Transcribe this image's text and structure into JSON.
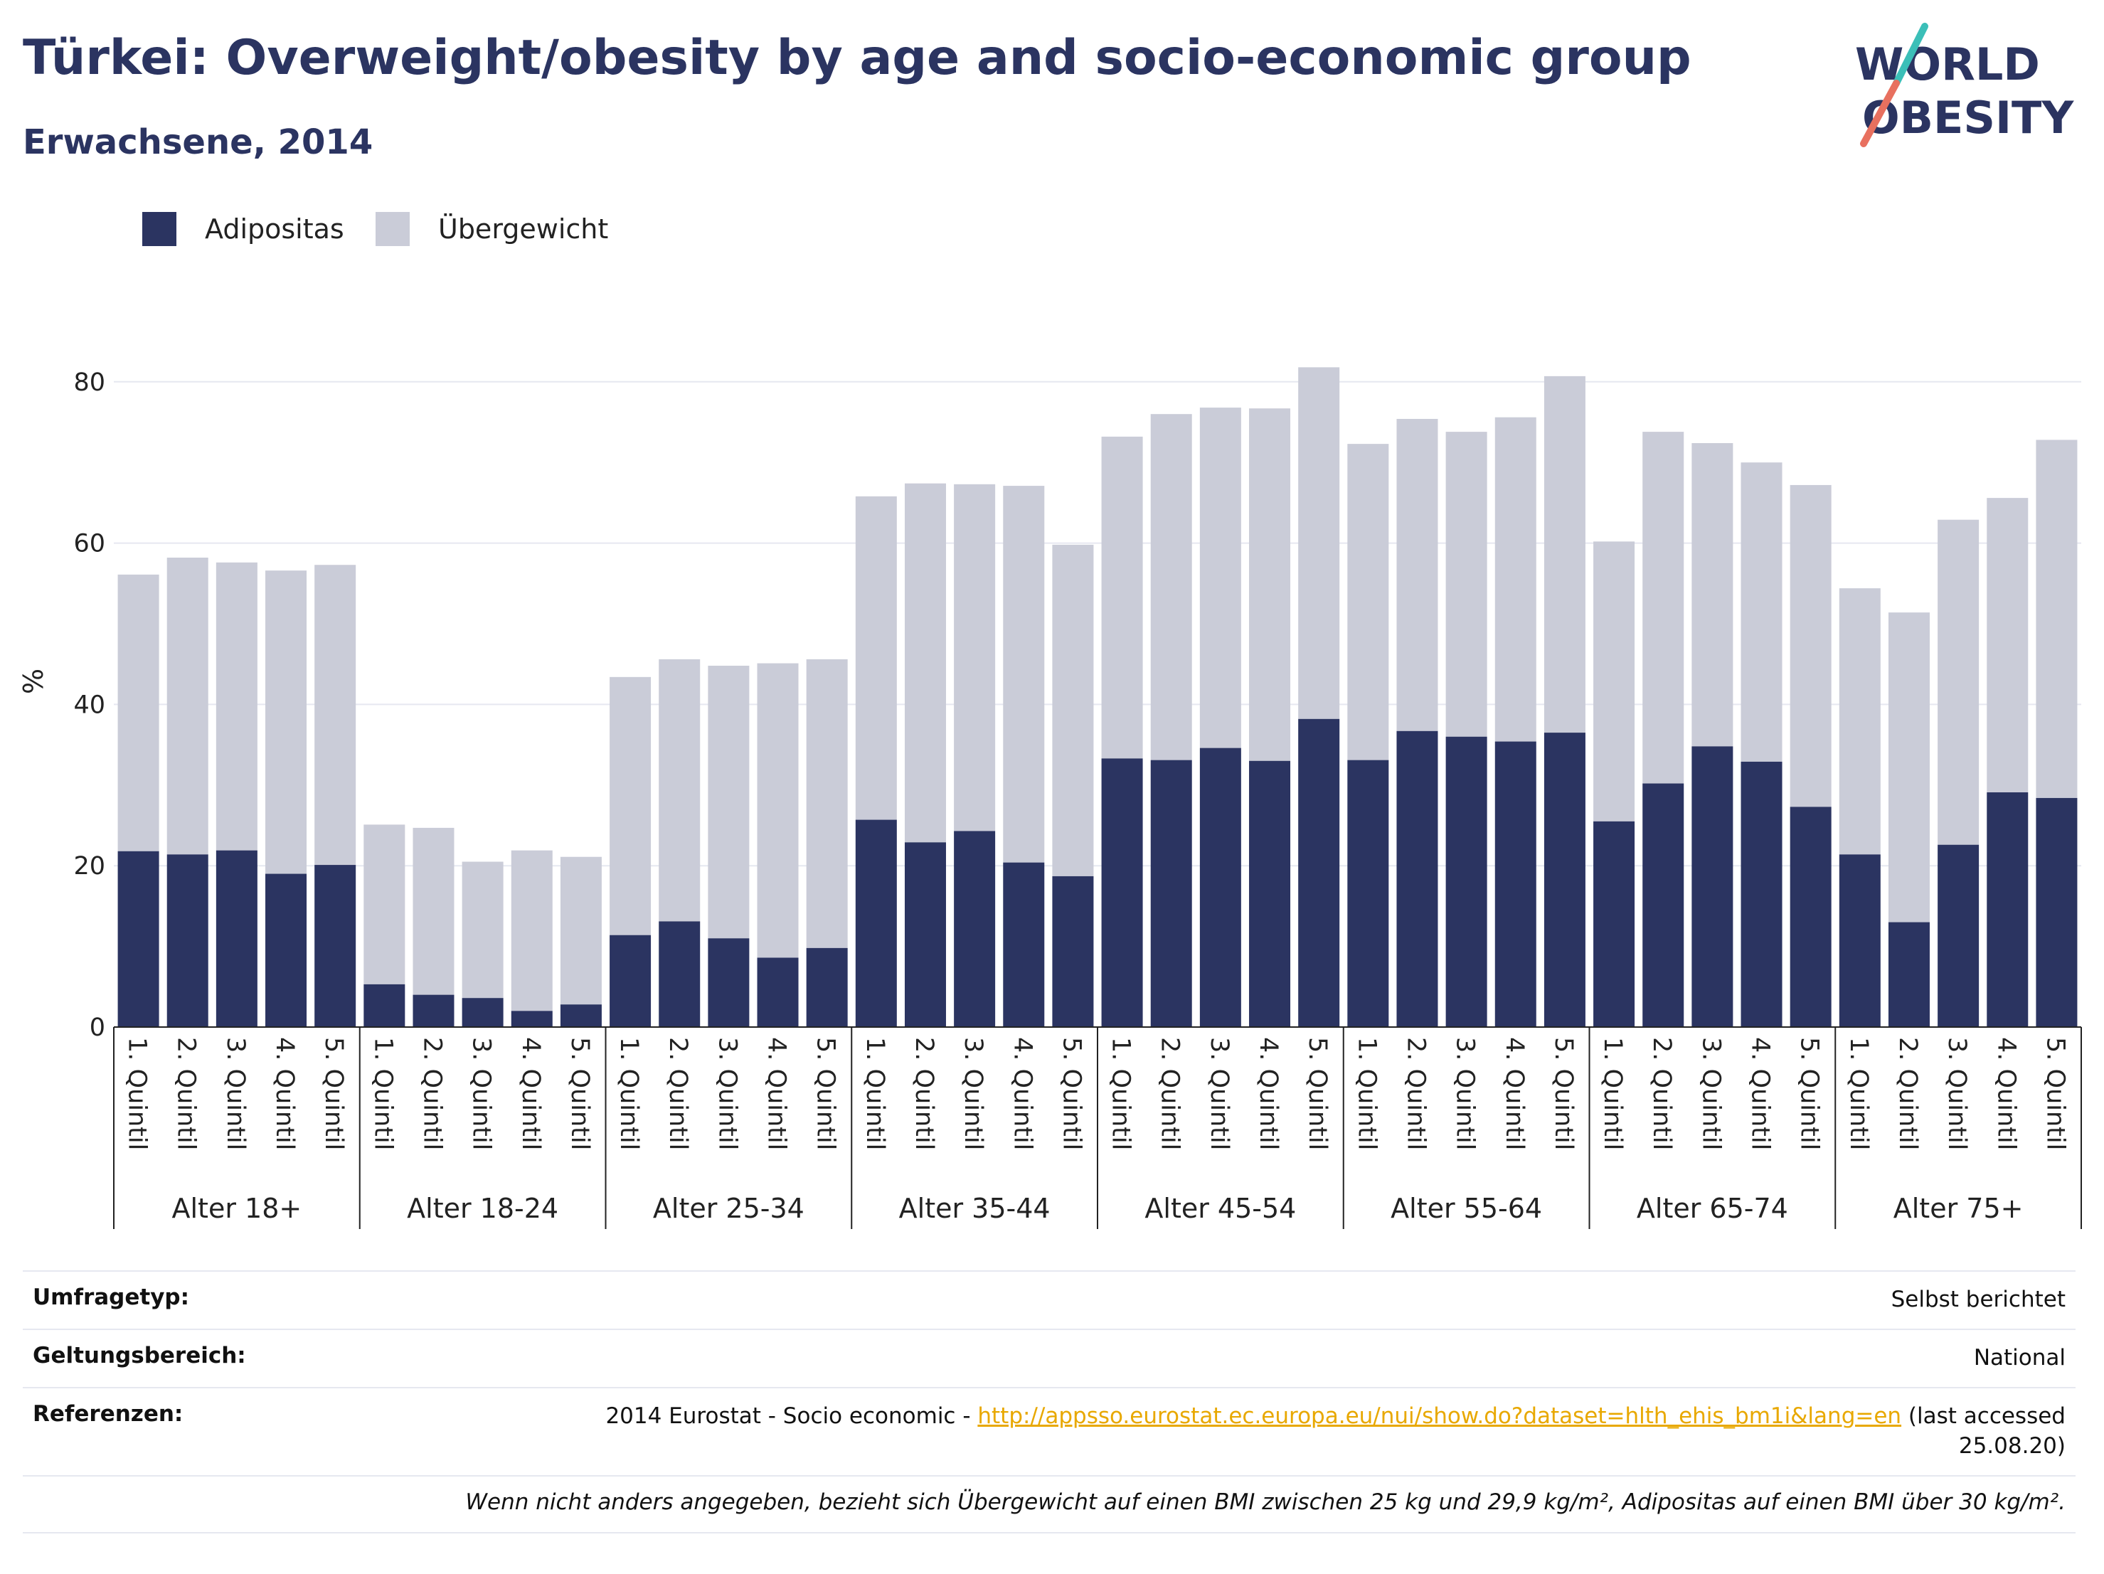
{
  "header": {
    "title": "Türkei: Overweight/obesity by age and socio-economic group",
    "subtitle": "Erwachsene, 2014"
  },
  "logo": {
    "line1": "WORLD",
    "line2": "OBESITY",
    "name": "world-obesity-logo"
  },
  "colors": {
    "obesity": "#2b3461",
    "overweight": "#caccd8",
    "grid": "#e6e8f0",
    "accent_teal": "#3bbfb8",
    "accent_coral": "#e8705f",
    "link": "#e8a800"
  },
  "legend": [
    {
      "label": "Adipositas",
      "color": "#2b3461"
    },
    {
      "label": "Übergewicht",
      "color": "#caccd8"
    }
  ],
  "chart_data": {
    "type": "bar",
    "stacked": true,
    "title": "",
    "xlabel": "",
    "ylabel": "%",
    "ylim": [
      0,
      90
    ],
    "yticks": [
      0,
      20,
      40,
      60,
      80
    ],
    "grid": true,
    "legend_position": "top-left",
    "quintiles": [
      "1. Quintil",
      "2. Quintil",
      "3. Quintil",
      "4. Quintil",
      "5. Quintil"
    ],
    "groups": [
      {
        "label": "Alter 18+",
        "obesity": [
          21.8,
          21.4,
          21.9,
          19.0,
          20.1
        ],
        "total": [
          56.1,
          58.2,
          57.6,
          56.6,
          57.3
        ]
      },
      {
        "label": "Alter 18-24",
        "obesity": [
          5.3,
          4.0,
          3.6,
          2.0,
          2.8
        ],
        "total": [
          25.1,
          24.7,
          20.5,
          21.9,
          21.1
        ]
      },
      {
        "label": "Alter 25-34",
        "obesity": [
          11.4,
          13.1,
          11.0,
          8.6,
          9.8
        ],
        "total": [
          43.4,
          45.6,
          44.8,
          45.1,
          45.6
        ]
      },
      {
        "label": "Alter 35-44",
        "obesity": [
          25.7,
          22.9,
          24.3,
          20.4,
          18.7
        ],
        "total": [
          65.8,
          67.4,
          67.3,
          67.1,
          59.8
        ]
      },
      {
        "label": "Alter 45-54",
        "obesity": [
          33.3,
          33.1,
          34.6,
          33.0,
          38.2
        ],
        "total": [
          73.2,
          76.0,
          76.8,
          76.7,
          81.8
        ]
      },
      {
        "label": "Alter 55-64",
        "obesity": [
          33.1,
          36.7,
          36.0,
          35.4,
          36.5
        ],
        "total": [
          72.3,
          75.4,
          73.8,
          75.6,
          80.7
        ]
      },
      {
        "label": "Alter 65-74",
        "obesity": [
          25.5,
          30.2,
          34.8,
          32.9,
          27.3
        ],
        "total": [
          60.2,
          73.8,
          72.4,
          70.0,
          67.2
        ]
      },
      {
        "label": "Alter 75+",
        "obesity": [
          21.4,
          13.0,
          22.6,
          29.1,
          28.4
        ],
        "total": [
          54.4,
          51.4,
          62.9,
          65.6,
          72.8
        ]
      }
    ]
  },
  "meta": {
    "survey_type_key": "Umfragetyp:",
    "survey_type_val": "Selbst berichtet",
    "scope_key": "Geltungsbereich:",
    "scope_val": "National",
    "refs_key": "Referenzen:",
    "refs_prefix": "2014 Eurostat - Socio economic - ",
    "refs_link": "http://appsso.eurostat.ec.europa.eu/nui/show.do?dataset=hlth_ehis_bm1i&lang=en",
    "refs_suffix1": " (last accessed",
    "refs_suffix2": "25.08.20)",
    "note": "Wenn nicht anders angegeben, bezieht sich Übergewicht auf einen BMI zwischen 25 kg und 29,9 kg/m², Adipositas auf einen BMI über 30 kg/m²."
  }
}
